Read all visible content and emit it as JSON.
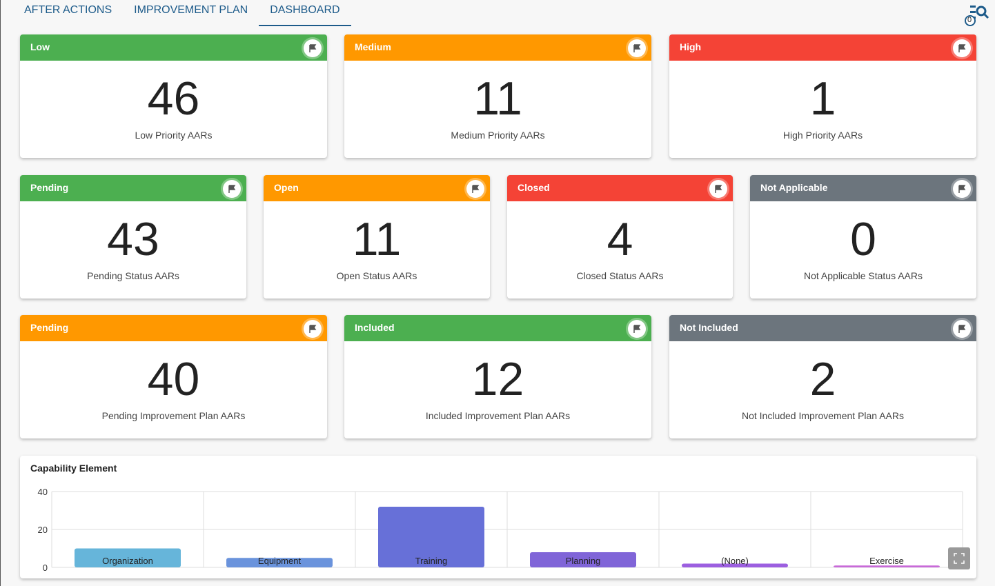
{
  "tabs": [
    "AFTER ACTIONS",
    "IMPROVEMENT PLAN",
    "DASHBOARD"
  ],
  "active_tab": "DASHBOARD",
  "filter_badge": "0",
  "cards": [
    {
      "title": "Low",
      "value": "46",
      "label": "Low Priority AARs",
      "color": "#4caf50"
    },
    {
      "title": "Medium",
      "value": "11",
      "label": "Medium Priority AARs",
      "color": "#ff9800"
    },
    {
      "title": "High",
      "value": "1",
      "label": "High Priority AARs",
      "color": "#f44336"
    },
    {
      "title": "Pending",
      "value": "43",
      "label": "Pending Status AARs",
      "color": "#4caf50"
    },
    {
      "title": "Open",
      "value": "11",
      "label": "Open Status AARs",
      "color": "#ff9800"
    },
    {
      "title": "Closed",
      "value": "4",
      "label": "Closed Status AARs",
      "color": "#f44336"
    },
    {
      "title": "Not Applicable",
      "value": "0",
      "label": "Not Applicable Status AARs",
      "color": "#6c757d"
    },
    {
      "title": "Pending",
      "value": "40",
      "label": "Pending Improvement Plan AARs",
      "color": "#ff9800"
    },
    {
      "title": "Included",
      "value": "12",
      "label": "Included Improvement Plan AARs",
      "color": "#4caf50"
    },
    {
      "title": "Not Included",
      "value": "2",
      "label": "Not Included Improvement Plan AARs",
      "color": "#6c757d"
    }
  ],
  "chart_data": {
    "type": "bar",
    "title": "Capability Element",
    "categories": [
      "Organization",
      "Equipment",
      "Training",
      "Planning",
      "(None)",
      "Exercise"
    ],
    "values": [
      10,
      5,
      32,
      8,
      2,
      1
    ],
    "colors": [
      "#66b5da",
      "#6a93dc",
      "#6770d8",
      "#8065d8",
      "#9c5fe0",
      "#c86ad8"
    ],
    "yticks": [
      0,
      20,
      40
    ],
    "ylim": [
      0,
      40
    ],
    "grid": true
  }
}
